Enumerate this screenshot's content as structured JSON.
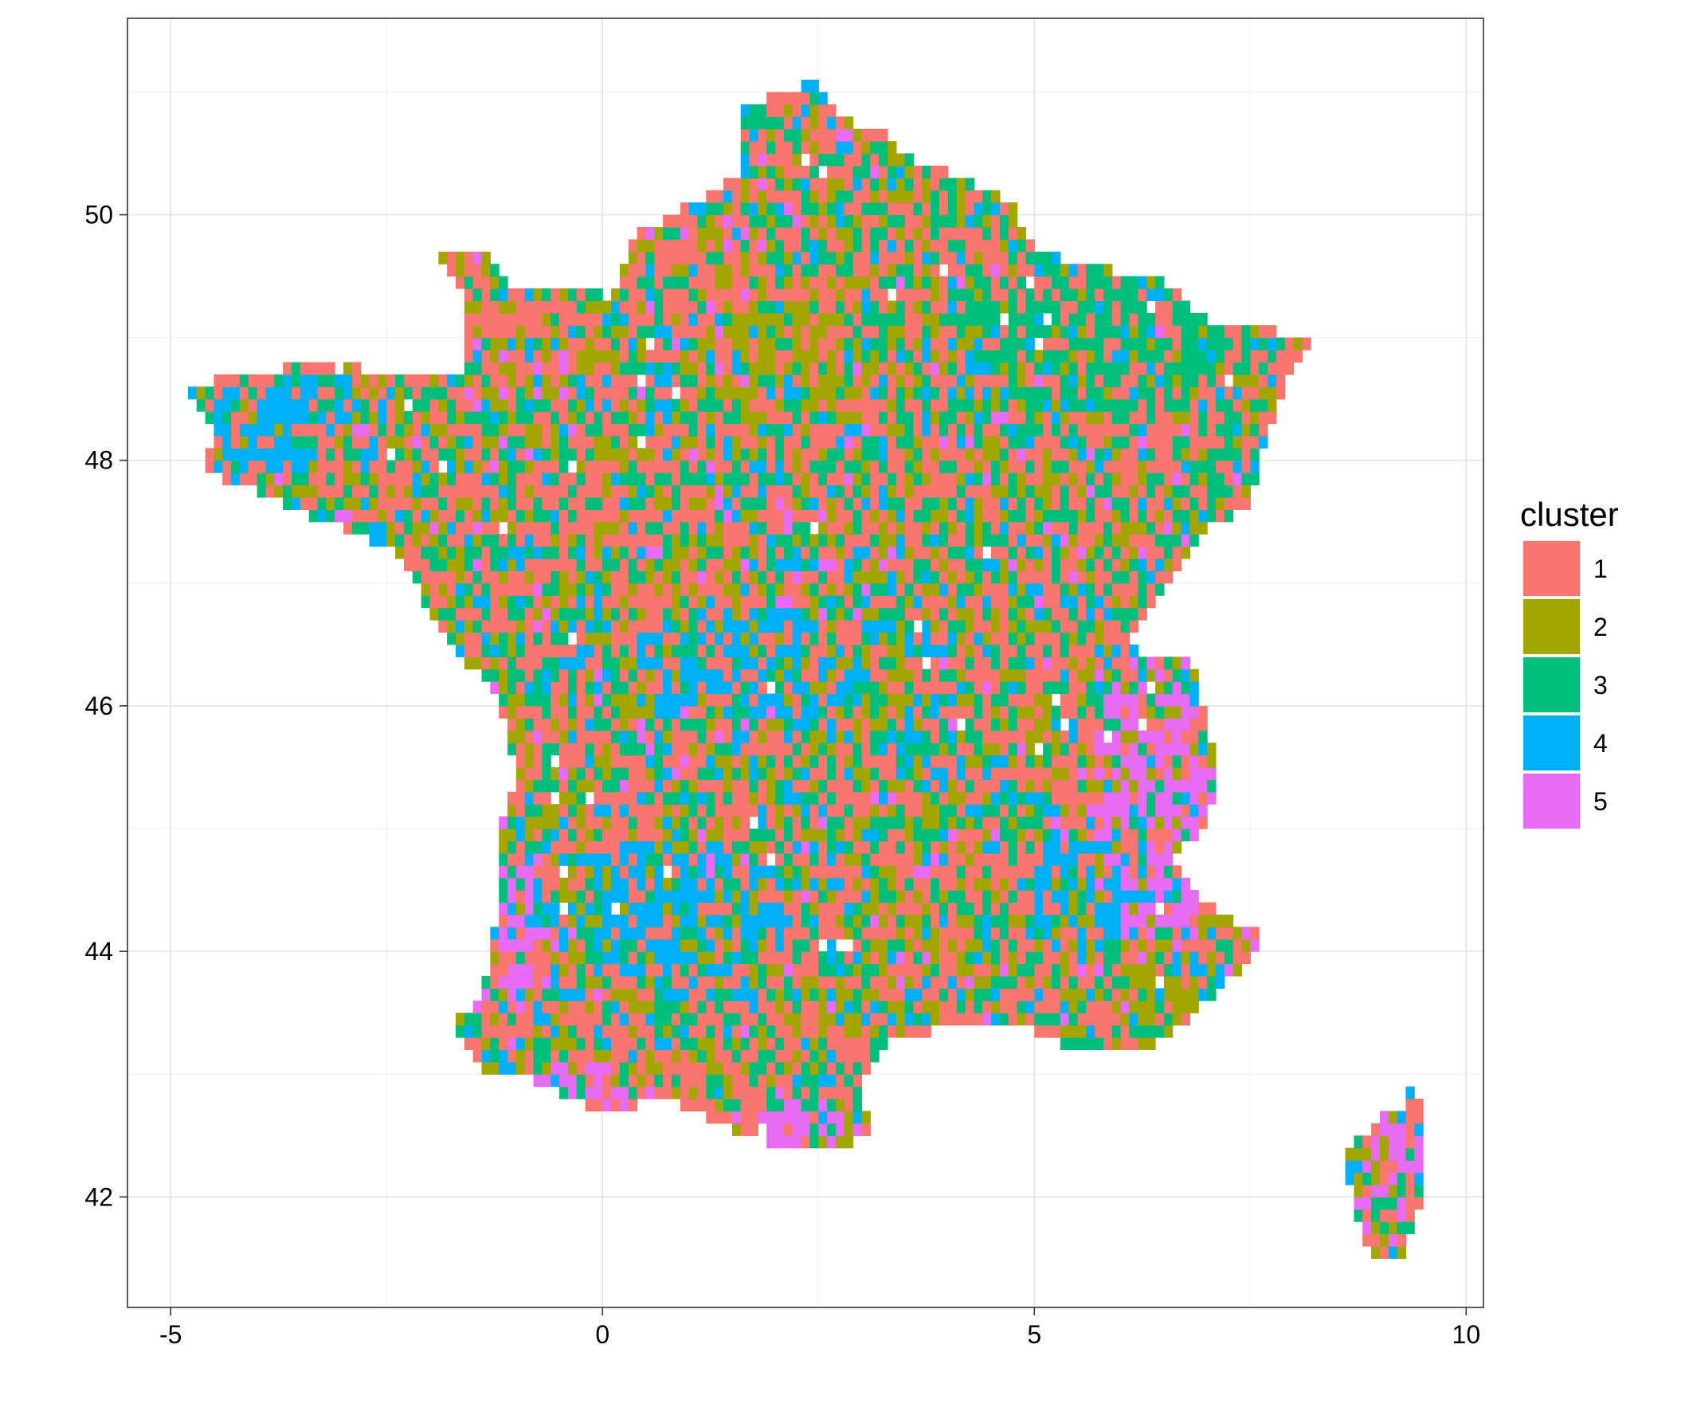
{
  "chart_data": {
    "type": "heatmap",
    "title": "",
    "xlabel": "",
    "ylabel": "",
    "xlim": [
      -5.5,
      10.2
    ],
    "ylim": [
      41.1,
      51.6
    ],
    "x_ticks": [
      "-5",
      "0",
      "5",
      "10"
    ],
    "y_ticks": [
      "42",
      "44",
      "46",
      "48",
      "50"
    ],
    "x_tick_values": [
      -5,
      0,
      5,
      10
    ],
    "y_tick_values": [
      42,
      44,
      46,
      48,
      50
    ],
    "grid": true,
    "legend": {
      "title": "cluster",
      "position": "right",
      "entries": [
        {
          "label": "1",
          "color": "#F8766D"
        },
        {
          "label": "2",
          "color": "#A3A500"
        },
        {
          "label": "3",
          "color": "#00BF7D"
        },
        {
          "label": "4",
          "color": "#00B0F6"
        },
        {
          "label": "5",
          "color": "#E76BF3"
        }
      ]
    },
    "cell_size_degrees": 0.1,
    "regions": [
      {
        "name": "mainland",
        "outline": [
          [
            -4.8,
            48.6
          ],
          [
            -4.3,
            48.7
          ],
          [
            -3.7,
            48.75
          ],
          [
            -3.0,
            48.85
          ],
          [
            -2.5,
            48.65
          ],
          [
            -1.9,
            48.7
          ],
          [
            -1.6,
            48.65
          ],
          [
            -1.55,
            49.3
          ],
          [
            -1.9,
            49.7
          ],
          [
            -1.3,
            49.7
          ],
          [
            -1.1,
            49.4
          ],
          [
            0.2,
            49.45
          ],
          [
            0.3,
            49.8
          ],
          [
            1.2,
            50.15
          ],
          [
            1.6,
            50.35
          ],
          [
            1.6,
            50.9
          ],
          [
            2.1,
            51.0
          ],
          [
            2.5,
            51.1
          ],
          [
            2.7,
            50.8
          ],
          [
            3.2,
            50.7
          ],
          [
            3.6,
            50.45
          ],
          [
            4.2,
            50.3
          ],
          [
            4.8,
            50.1
          ],
          [
            4.9,
            49.8
          ],
          [
            5.5,
            49.6
          ],
          [
            6.4,
            49.5
          ],
          [
            7.0,
            49.15
          ],
          [
            7.6,
            49.1
          ],
          [
            8.2,
            48.95
          ],
          [
            7.9,
            48.6
          ],
          [
            7.6,
            48.0
          ],
          [
            7.5,
            47.6
          ],
          [
            7.0,
            47.45
          ],
          [
            6.9,
            47.3
          ],
          [
            6.4,
            46.9
          ],
          [
            6.1,
            46.55
          ],
          [
            6.3,
            46.4
          ],
          [
            6.8,
            46.4
          ],
          [
            7.0,
            45.9
          ],
          [
            7.1,
            45.5
          ],
          [
            7.0,
            45.0
          ],
          [
            6.6,
            44.8
          ],
          [
            7.0,
            44.4
          ],
          [
            7.7,
            44.1
          ],
          [
            7.3,
            43.8
          ],
          [
            6.8,
            43.45
          ],
          [
            6.3,
            43.2
          ],
          [
            5.5,
            43.2
          ],
          [
            5.0,
            43.35
          ],
          [
            4.2,
            43.45
          ],
          [
            3.3,
            43.25
          ],
          [
            3.0,
            42.9
          ],
          [
            3.1,
            42.5
          ],
          [
            2.4,
            42.35
          ],
          [
            1.7,
            42.5
          ],
          [
            0.7,
            42.8
          ],
          [
            0.0,
            42.7
          ],
          [
            -0.8,
            42.95
          ],
          [
            -1.4,
            43.05
          ],
          [
            -1.8,
            43.4
          ],
          [
            -1.4,
            43.6
          ],
          [
            -1.2,
            44.4
          ],
          [
            -1.2,
            45.0
          ],
          [
            -1.0,
            45.4
          ],
          [
            -1.2,
            46.1
          ],
          [
            -1.5,
            46.3
          ],
          [
            -2.0,
            46.7
          ],
          [
            -2.2,
            47.1
          ],
          [
            -2.5,
            47.3
          ],
          [
            -3.2,
            47.5
          ],
          [
            -4.2,
            47.8
          ],
          [
            -4.6,
            47.9
          ],
          [
            -4.5,
            48.3
          ],
          [
            -4.8,
            48.5
          ]
        ]
      },
      {
        "name": "corsica",
        "outline": [
          [
            9.35,
            42.95
          ],
          [
            9.5,
            42.7
          ],
          [
            9.55,
            42.2
          ],
          [
            9.4,
            41.8
          ],
          [
            9.25,
            41.45
          ],
          [
            8.9,
            41.5
          ],
          [
            8.75,
            41.8
          ],
          [
            8.65,
            42.1
          ],
          [
            8.6,
            42.35
          ],
          [
            9.0,
            42.65
          ],
          [
            9.25,
            42.7
          ]
        ]
      }
    ],
    "zones": [
      {
        "cluster": "4",
        "x": -3.6,
        "y": 48.3,
        "rx": 1.4,
        "ry": 0.45,
        "weight": 1.2
      },
      {
        "cluster": "4",
        "x": 1.8,
        "y": 46.3,
        "rx": 1.6,
        "ry": 0.6,
        "weight": 1.0
      },
      {
        "cluster": "4",
        "x": 0.8,
        "y": 44.4,
        "rx": 1.8,
        "ry": 0.6,
        "weight": 1.1
      },
      {
        "cluster": "4",
        "x": 5.6,
        "y": 44.5,
        "rx": 0.9,
        "ry": 0.6,
        "weight": 0.9
      },
      {
        "cluster": "5",
        "x": 6.4,
        "y": 45.2,
        "rx": 0.9,
        "ry": 1.3,
        "weight": 1.4
      },
      {
        "cluster": "5",
        "x": -0.3,
        "y": 42.9,
        "rx": 1.0,
        "ry": 0.25,
        "weight": 1.2
      },
      {
        "cluster": "5",
        "x": 2.3,
        "y": 42.6,
        "rx": 0.7,
        "ry": 0.3,
        "weight": 1.0
      },
      {
        "cluster": "5",
        "x": -1.0,
        "y": 44.1,
        "rx": 0.3,
        "ry": 0.7,
        "weight": 1.0
      },
      {
        "cluster": "5",
        "x": 9.1,
        "y": 42.2,
        "rx": 0.5,
        "ry": 0.7,
        "weight": 1.0
      },
      {
        "cluster": "2",
        "x": 2.2,
        "y": 48.9,
        "rx": 1.2,
        "ry": 0.6,
        "weight": 0.9
      },
      {
        "cluster": "2",
        "x": 6.7,
        "y": 43.6,
        "rx": 0.9,
        "ry": 0.5,
        "weight": 0.9
      },
      {
        "cluster": "3",
        "x": 5.8,
        "y": 49.1,
        "rx": 1.8,
        "ry": 0.9,
        "weight": 0.8
      },
      {
        "cluster": "3",
        "x": 7.2,
        "y": 48.0,
        "rx": 0.5,
        "ry": 0.6,
        "weight": 0.7
      }
    ]
  }
}
